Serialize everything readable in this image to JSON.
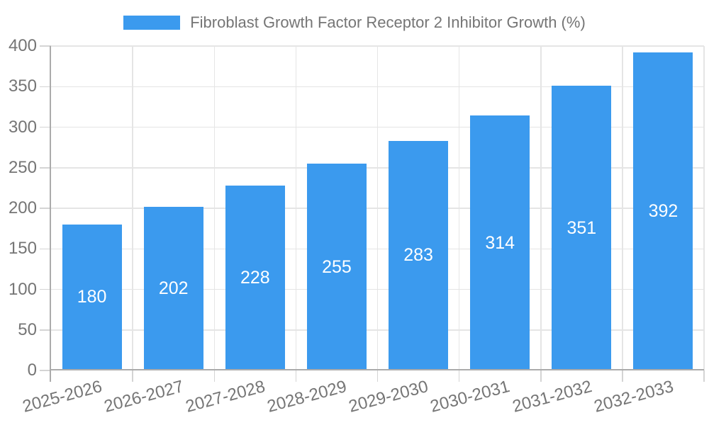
{
  "chart_data": {
    "type": "bar",
    "title": "Fibroblast Growth Factor Receptor 2 Inhibitor Growth (%)",
    "categories": [
      "2025-2026",
      "2026-2027",
      "2027-2028",
      "2028-2029",
      "2029-2030",
      "2030-2031",
      "2031-2032",
      "2032-2033"
    ],
    "values": [
      180,
      202,
      228,
      255,
      283,
      314,
      351,
      392
    ],
    "xlabel": "",
    "ylabel": "",
    "ylim": [
      0,
      400
    ],
    "ytick_step": 50,
    "yticks": [
      0,
      50,
      100,
      150,
      200,
      250,
      300,
      350,
      400
    ],
    "grid": true,
    "legend_position": "top",
    "x_label_rotation_deg": -15,
    "bar_color": "#3B9AEE",
    "value_label_color": "#FFFFFF",
    "axis_text_color": "#757575",
    "grid_color": "#E5E5E5",
    "axis_border_color": "#ABABAB",
    "tick_color": "#D4D4D4"
  }
}
